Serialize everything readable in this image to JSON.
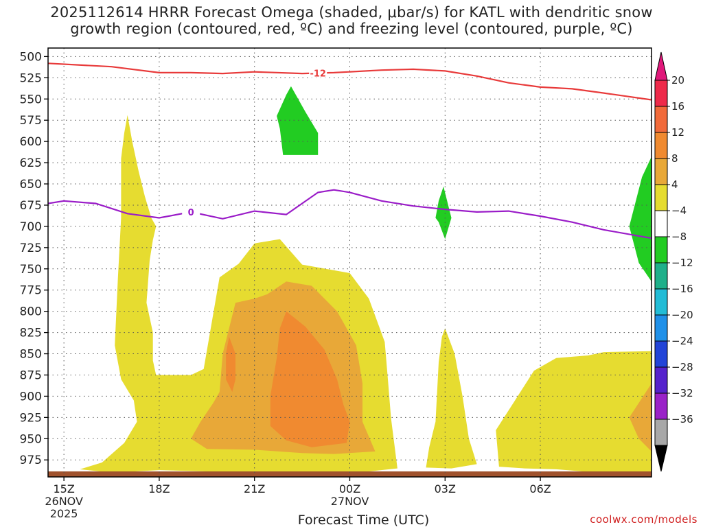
{
  "title_line1": "2025112614 HRRR Forecast Omega (shaded, μbar/s) for KATL with dendritic snow",
  "title_line2": "growth region (contoured, red, ºC) and freezing level (contoured, purple, ºC)",
  "credit": "coolwx.com/models",
  "chart_data": {
    "type": "time-height contour",
    "title": "2025112614 HRRR Forecast Omega (shaded, μbar/s) for KATL with dendritic snow growth region (contoured, red, ºC) and freezing level (contoured, purple, ºC)",
    "xlabel": "Forecast Time (UTC)",
    "ylabel": "",
    "y_ticks": [
      500,
      525,
      550,
      575,
      600,
      625,
      650,
      675,
      700,
      725,
      750,
      775,
      800,
      825,
      850,
      875,
      900,
      925,
      950,
      975
    ],
    "ylim": [
      490,
      995
    ],
    "x_range_hours": [
      14.5,
      33.5
    ],
    "x_ticks": [
      {
        "hour": 15,
        "label": "15Z",
        "sub1": "26NOV",
        "sub2": "2025"
      },
      {
        "hour": 18,
        "label": "18Z",
        "sub1": "",
        "sub2": ""
      },
      {
        "hour": 21,
        "label": "21Z",
        "sub1": "",
        "sub2": ""
      },
      {
        "hour": 24,
        "label": "00Z",
        "sub1": "27NOV",
        "sub2": ""
      },
      {
        "hour": 27,
        "label": "03Z",
        "sub1": "",
        "sub2": ""
      },
      {
        "hour": 30,
        "label": "06Z",
        "sub1": "",
        "sub2": ""
      }
    ],
    "grid": true,
    "colorbar": {
      "labels": [
        "20",
        "16",
        "12",
        "8",
        "4",
        "−4",
        "−8",
        "−12",
        "−16",
        "−20",
        "−24",
        "−28",
        "−32",
        "−36"
      ],
      "levels": [
        20,
        16,
        12,
        8,
        4,
        -4,
        -8,
        -12,
        -16,
        -20,
        -24,
        -28,
        -32,
        -36
      ],
      "colors": [
        "#ee2a4a",
        "#f16a3a",
        "#f08a30",
        "#e8a838",
        "#e6dc30",
        "#ffffff",
        "#22cc22",
        "#1fb08a",
        "#22bcd6",
        "#1f90e8",
        "#2244d8",
        "#5522cc",
        "#9a22c8",
        "#a8a8a8"
      ],
      "top_arrow_color": "#e0187a",
      "bottom_arrow_color": "#000000"
    },
    "contours": [
      {
        "name": "-12",
        "color": "#e83a3a",
        "label_hour": 23.0,
        "points": [
          [
            14.5,
            508
          ],
          [
            16.5,
            512
          ],
          [
            18.0,
            519
          ],
          [
            19.0,
            519
          ],
          [
            20.0,
            520
          ],
          [
            21.0,
            518
          ],
          [
            22.5,
            520
          ],
          [
            23.5,
            519
          ],
          [
            25.0,
            516
          ],
          [
            26.0,
            515
          ],
          [
            27.0,
            517
          ],
          [
            28.0,
            523
          ],
          [
            29.0,
            531
          ],
          [
            30.0,
            536
          ],
          [
            31.0,
            538
          ],
          [
            32.0,
            543
          ],
          [
            33.5,
            551
          ]
        ]
      },
      {
        "name": "0",
        "color": "#9a1cc8",
        "label_hour": 19.0,
        "points": [
          [
            14.5,
            673
          ],
          [
            15.0,
            670
          ],
          [
            16.0,
            673
          ],
          [
            17.0,
            685
          ],
          [
            18.0,
            690
          ],
          [
            19.0,
            683
          ],
          [
            20.0,
            691
          ],
          [
            21.0,
            682
          ],
          [
            22.0,
            686
          ],
          [
            23.0,
            660
          ],
          [
            23.5,
            657
          ],
          [
            24.0,
            660
          ],
          [
            25.0,
            670
          ],
          [
            26.0,
            676
          ],
          [
            27.0,
            680
          ],
          [
            28.0,
            683
          ],
          [
            29.0,
            682
          ],
          [
            30.0,
            688
          ],
          [
            31.0,
            695
          ],
          [
            32.0,
            704
          ],
          [
            33.5,
            714
          ]
        ]
      }
    ],
    "omega_regions": [
      {
        "value": 4,
        "color": "#e6dc30",
        "points": [
          [
            17.0,
            569
          ],
          [
            17.15,
            600
          ],
          [
            17.35,
            635
          ],
          [
            17.55,
            665
          ],
          [
            17.75,
            690
          ],
          [
            17.9,
            700
          ],
          [
            17.8,
            716
          ],
          [
            17.7,
            740
          ],
          [
            17.6,
            790
          ],
          [
            17.8,
            825
          ],
          [
            17.8,
            858
          ],
          [
            17.9,
            875
          ],
          [
            19.0,
            875
          ],
          [
            19.4,
            868
          ],
          [
            19.9,
            760
          ],
          [
            20.5,
            744
          ],
          [
            21.0,
            720
          ],
          [
            21.8,
            715
          ],
          [
            22.5,
            745
          ],
          [
            24.0,
            755
          ],
          [
            24.6,
            785
          ],
          [
            25.1,
            836
          ],
          [
            25.2,
            880
          ],
          [
            25.3,
            926
          ],
          [
            25.5,
            985
          ],
          [
            24.0,
            991
          ],
          [
            22.0,
            990
          ],
          [
            20.0,
            989
          ],
          [
            18.0,
            987
          ],
          [
            16.5,
            990
          ],
          [
            15.5,
            986
          ],
          [
            16.2,
            978
          ],
          [
            16.9,
            955
          ],
          [
            17.3,
            930
          ],
          [
            17.2,
            905
          ],
          [
            16.8,
            880
          ],
          [
            16.6,
            840
          ],
          [
            16.7,
            760
          ],
          [
            16.8,
            690
          ],
          [
            16.8,
            620
          ],
          [
            16.9,
            590
          ]
        ]
      },
      {
        "value": 4,
        "color": "#e6dc30",
        "points": [
          [
            27.0,
            820
          ],
          [
            27.3,
            850
          ],
          [
            27.55,
            900
          ],
          [
            27.75,
            950
          ],
          [
            28.0,
            980
          ],
          [
            27.2,
            985
          ],
          [
            26.4,
            984
          ],
          [
            26.5,
            960
          ],
          [
            26.7,
            930
          ],
          [
            26.8,
            860
          ],
          [
            26.9,
            830
          ]
        ]
      },
      {
        "value": 4,
        "color": "#e6dc30",
        "points": [
          [
            28.7,
            983
          ],
          [
            28.6,
            940
          ],
          [
            29.2,
            905
          ],
          [
            29.8,
            870
          ],
          [
            30.5,
            855
          ],
          [
            31.5,
            852
          ],
          [
            32.0,
            848
          ],
          [
            33.5,
            847
          ],
          [
            33.5,
            991
          ],
          [
            31.5,
            989
          ],
          [
            30.5,
            986
          ],
          [
            29.5,
            985
          ]
        ]
      },
      {
        "value": 8,
        "color": "#e8a838",
        "points": [
          [
            20.4,
            790
          ],
          [
            21.0,
            785
          ],
          [
            21.4,
            780
          ],
          [
            22.0,
            765
          ],
          [
            22.8,
            770
          ],
          [
            23.6,
            800
          ],
          [
            24.2,
            840
          ],
          [
            24.4,
            885
          ],
          [
            24.4,
            930
          ],
          [
            24.8,
            965
          ],
          [
            23.5,
            968
          ],
          [
            22.5,
            967
          ],
          [
            21.0,
            963
          ],
          [
            19.5,
            962
          ],
          [
            19.0,
            950
          ],
          [
            19.3,
            930
          ],
          [
            19.7,
            908
          ],
          [
            19.9,
            895
          ],
          [
            20.0,
            850
          ]
        ]
      },
      {
        "value": 8,
        "color": "#e8a838",
        "points": [
          [
            33.5,
            885
          ],
          [
            32.8,
            925
          ],
          [
            33.1,
            950
          ],
          [
            33.5,
            965
          ]
        ]
      },
      {
        "value": 12,
        "color": "#f08a30",
        "points": [
          [
            20.2,
            830
          ],
          [
            20.4,
            850
          ],
          [
            20.4,
            880
          ],
          [
            20.3,
            895
          ],
          [
            20.1,
            880
          ],
          [
            20.1,
            850
          ]
        ]
      },
      {
        "value": 12,
        "color": "#f08a30",
        "points": [
          [
            22.0,
            800
          ],
          [
            22.6,
            818
          ],
          [
            23.2,
            845
          ],
          [
            23.6,
            880
          ],
          [
            23.8,
            910
          ],
          [
            24.0,
            930
          ],
          [
            23.9,
            955
          ],
          [
            22.8,
            960
          ],
          [
            22.0,
            952
          ],
          [
            21.5,
            935
          ],
          [
            21.5,
            900
          ],
          [
            21.7,
            855
          ],
          [
            21.8,
            820
          ]
        ]
      },
      {
        "value": -4,
        "color": "#22cc22",
        "points": [
          [
            22.15,
            535
          ],
          [
            22.6,
            565
          ],
          [
            23.0,
            590
          ],
          [
            23.0,
            616
          ],
          [
            21.9,
            616
          ],
          [
            21.8,
            585
          ],
          [
            21.7,
            570
          ],
          [
            22.0,
            545
          ]
        ]
      },
      {
        "value": -4,
        "color": "#22cc22",
        "points": [
          [
            26.95,
            653
          ],
          [
            27.2,
            690
          ],
          [
            27.0,
            715
          ],
          [
            26.8,
            695
          ],
          [
            26.7,
            690
          ],
          [
            26.8,
            670
          ]
        ]
      },
      {
        "value": -4,
        "color": "#22cc22",
        "points": [
          [
            33.5,
            618
          ],
          [
            33.2,
            642
          ],
          [
            32.8,
            700
          ],
          [
            33.1,
            743
          ],
          [
            33.5,
            765
          ]
        ]
      }
    ],
    "terrain_color": "#a0522d"
  }
}
